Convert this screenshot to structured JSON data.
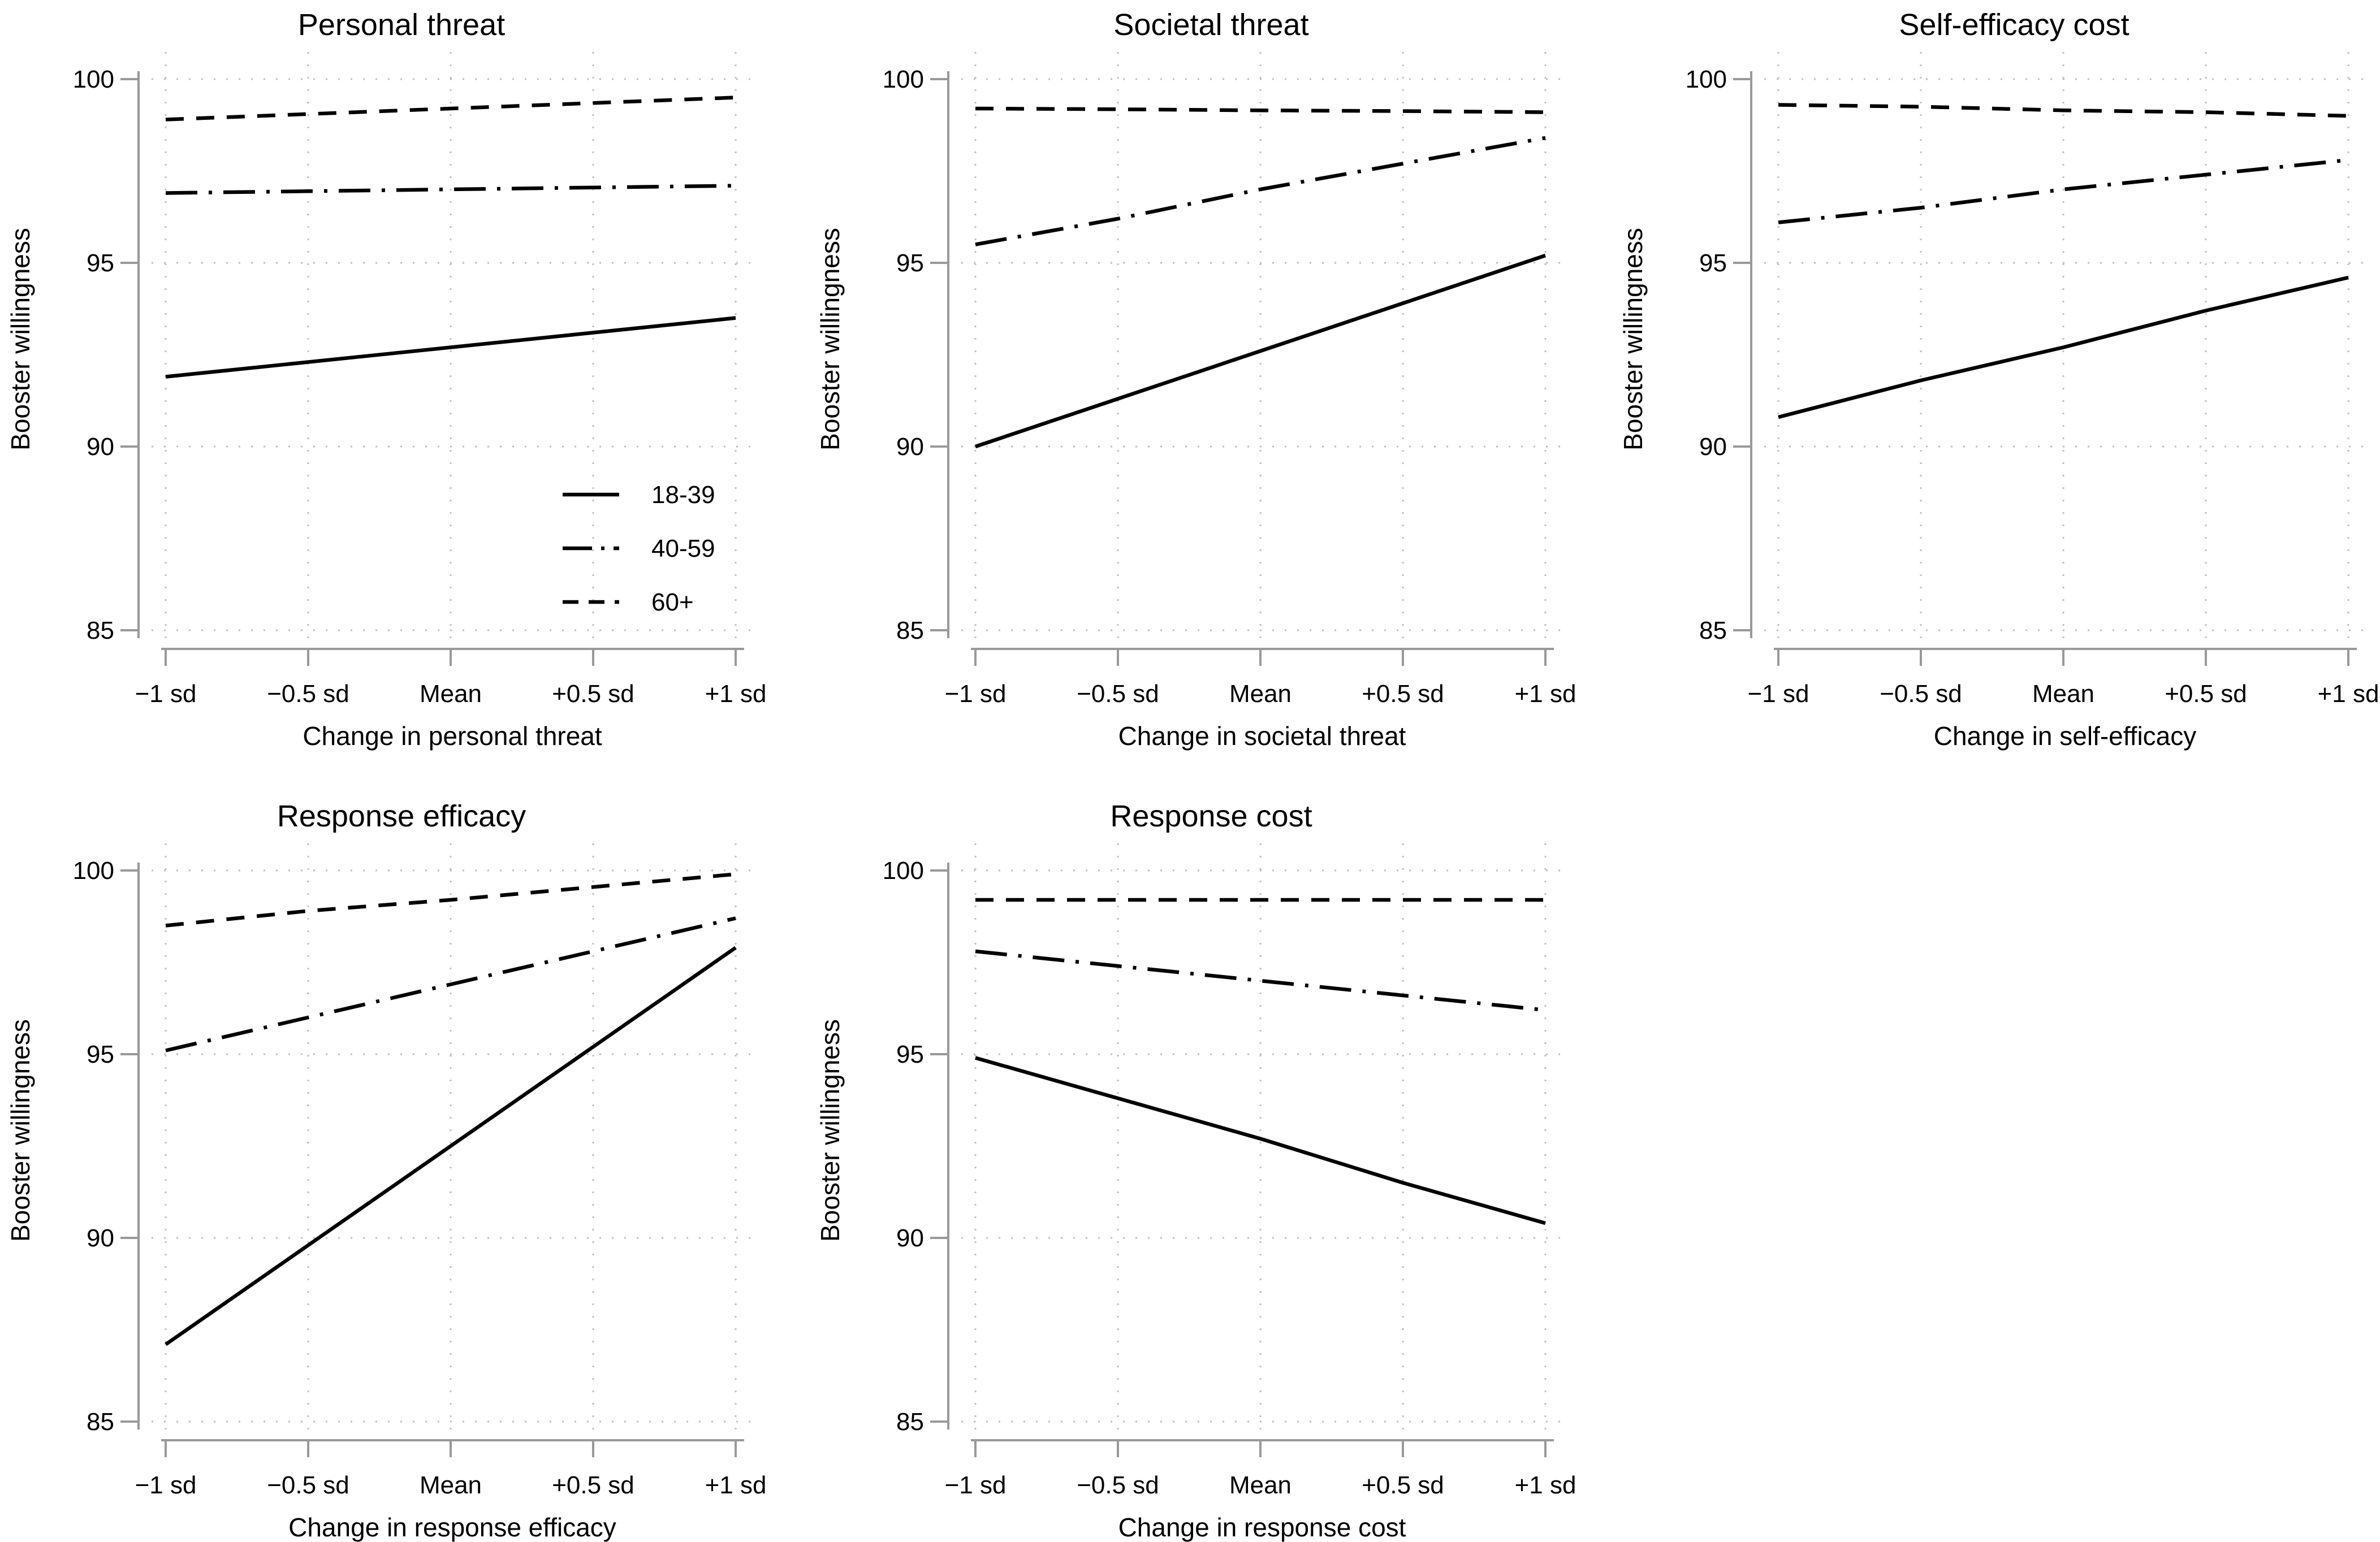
{
  "figure": {
    "description": "Predicted booster willingness by age group across standardized changes in five predictors",
    "background_color": "#ffffff",
    "text_color": "#000000",
    "axis_color": "#999999",
    "grid_color": "#bfbfbf",
    "line_color": "#000000",
    "legend": {
      "entries": [
        {
          "label": "18-39",
          "style": "solid"
        },
        {
          "label": "40-59",
          "style": "dashdot"
        },
        {
          "label": "60+",
          "style": "dashed"
        }
      ],
      "position": "inside lower right of first panel"
    }
  },
  "chart_data": [
    {
      "type": "line",
      "title": "Personal threat",
      "xlabel": "Change in personal threat",
      "ylabel": "Booster willingness",
      "x": [
        -1,
        -0.5,
        0,
        0.5,
        1
      ],
      "x_tick_labels": [
        "−1 sd",
        "−0.5 sd",
        "Mean",
        "+0.5 sd",
        "+1 sd"
      ],
      "y_ticks": [
        85,
        90,
        95,
        100
      ],
      "ylim": [
        85,
        100
      ],
      "grid": "dotted",
      "show_legend": true,
      "series": [
        {
          "name": "18-39",
          "style": "solid",
          "values": [
            91.9,
            92.3,
            92.7,
            93.1,
            93.5
          ]
        },
        {
          "name": "40-59",
          "style": "dashdot",
          "values": [
            96.9,
            96.95,
            97.0,
            97.05,
            97.1
          ]
        },
        {
          "name": "60+",
          "style": "dashed",
          "values": [
            98.9,
            99.05,
            99.2,
            99.35,
            99.5
          ]
        }
      ]
    },
    {
      "type": "line",
      "title": "Societal threat",
      "xlabel": "Change in societal threat",
      "ylabel": "Booster willingness",
      "x": [
        -1,
        -0.5,
        0,
        0.5,
        1
      ],
      "x_tick_labels": [
        "−1 sd",
        "−0.5 sd",
        "Mean",
        "+0.5 sd",
        "+1 sd"
      ],
      "y_ticks": [
        85,
        90,
        95,
        100
      ],
      "ylim": [
        85,
        100
      ],
      "grid": "dotted",
      "show_legend": false,
      "series": [
        {
          "name": "18-39",
          "style": "solid",
          "values": [
            90.0,
            91.3,
            92.6,
            93.9,
            95.2
          ]
        },
        {
          "name": "40-59",
          "style": "dashdot",
          "values": [
            95.5,
            96.2,
            97.0,
            97.7,
            98.4
          ]
        },
        {
          "name": "60+",
          "style": "dashed",
          "values": [
            99.2,
            99.18,
            99.15,
            99.13,
            99.1
          ]
        }
      ]
    },
    {
      "type": "line",
      "title": "Self-efficacy cost",
      "xlabel": "Change in self-efficacy",
      "ylabel": "Booster willingness",
      "x": [
        -1,
        -0.5,
        0,
        0.5,
        1
      ],
      "x_tick_labels": [
        "−1 sd",
        "−0.5 sd",
        "Mean",
        "+0.5 sd",
        "+1 sd"
      ],
      "y_ticks": [
        85,
        90,
        95,
        100
      ],
      "ylim": [
        85,
        100
      ],
      "grid": "dotted",
      "show_legend": false,
      "series": [
        {
          "name": "18-39",
          "style": "solid",
          "values": [
            90.8,
            91.8,
            92.7,
            93.7,
            94.6
          ]
        },
        {
          "name": "40-59",
          "style": "dashdot",
          "values": [
            96.1,
            96.5,
            97.0,
            97.4,
            97.8
          ]
        },
        {
          "name": "60+",
          "style": "dashed",
          "values": [
            99.3,
            99.25,
            99.15,
            99.1,
            99.0
          ]
        }
      ]
    },
    {
      "type": "line",
      "title": "Response efficacy",
      "xlabel": "Change in response efficacy",
      "ylabel": "Booster willingness",
      "x": [
        -1,
        -0.5,
        0,
        0.5,
        1
      ],
      "x_tick_labels": [
        "−1 sd",
        "−0.5 sd",
        "Mean",
        "+0.5 sd",
        "+1 sd"
      ],
      "y_ticks": [
        85,
        90,
        95,
        100
      ],
      "ylim": [
        85,
        100
      ],
      "grid": "dotted",
      "show_legend": false,
      "series": [
        {
          "name": "18-39",
          "style": "solid",
          "values": [
            87.1,
            89.8,
            92.5,
            95.2,
            97.9
          ]
        },
        {
          "name": "40-59",
          "style": "dashdot",
          "values": [
            95.1,
            96.0,
            96.9,
            97.8,
            98.7
          ]
        },
        {
          "name": "60+",
          "style": "dashed",
          "values": [
            98.5,
            98.9,
            99.2,
            99.55,
            99.9
          ]
        }
      ]
    },
    {
      "type": "line",
      "title": "Response cost",
      "xlabel": "Change in response cost",
      "ylabel": "Booster willingness",
      "x": [
        -1,
        -0.5,
        0,
        0.5,
        1
      ],
      "x_tick_labels": [
        "−1 sd",
        "−0.5 sd",
        "Mean",
        "+0.5 sd",
        "+1 sd"
      ],
      "y_ticks": [
        85,
        90,
        95,
        100
      ],
      "ylim": [
        85,
        100
      ],
      "grid": "dotted",
      "show_legend": false,
      "series": [
        {
          "name": "18-39",
          "style": "solid",
          "values": [
            94.9,
            93.8,
            92.7,
            91.5,
            90.4
          ]
        },
        {
          "name": "40-59",
          "style": "dashdot",
          "values": [
            97.8,
            97.4,
            97.0,
            96.6,
            96.2
          ]
        },
        {
          "name": "60+",
          "style": "dashed",
          "values": [
            99.2,
            99.2,
            99.2,
            99.2,
            99.2
          ]
        }
      ]
    }
  ]
}
